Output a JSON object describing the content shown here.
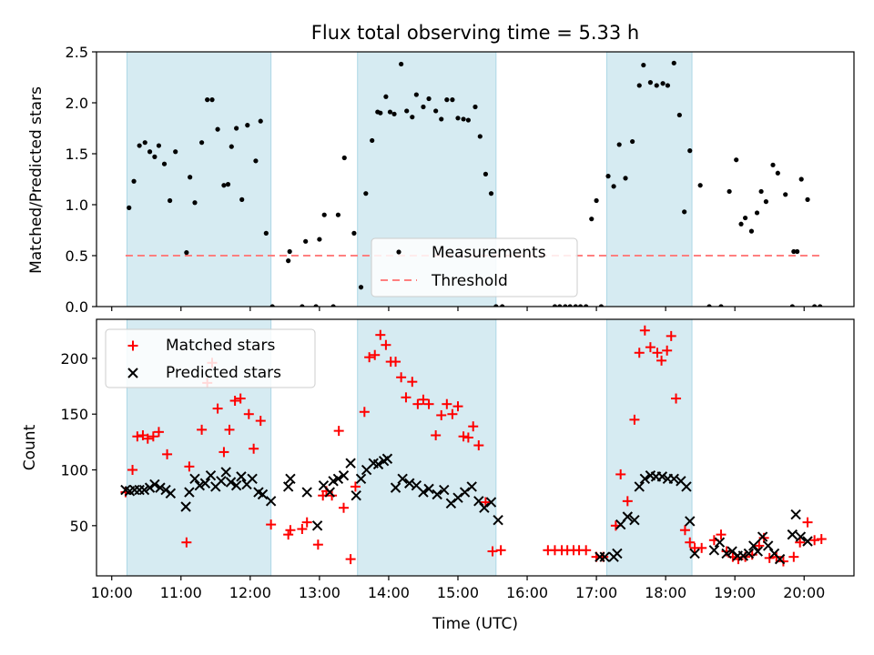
{
  "title": "Flux total observing time = 5.33 h",
  "colors": {
    "shade": "#add8e6",
    "measurement": "#000000",
    "threshold": "#ff7f7f",
    "matched": "#ff0000",
    "predicted": "#000000"
  },
  "chart_data": [
    {
      "type": "scatter",
      "ylabel": "Matched/Predicted stars",
      "ylim": [
        0,
        2.5
      ],
      "xlim": [
        9.78,
        20.72
      ],
      "yticks": [
        0.0,
        0.5,
        1.0,
        1.5,
        2.0,
        2.5
      ],
      "ytick_labels": [
        "0.0",
        "0.5",
        "1.0",
        "1.5",
        "2.0",
        "2.5"
      ],
      "legend": {
        "position": "lower-center",
        "entries": [
          "Measurements",
          "Threshold"
        ]
      },
      "threshold": {
        "name": "Threshold",
        "value": 0.5,
        "x_range": [
          10.2,
          20.25
        ]
      },
      "shaded_intervals": [
        [
          10.22,
          12.3
        ],
        [
          13.55,
          15.55
        ],
        [
          17.15,
          18.38
        ]
      ],
      "series": [
        {
          "name": "Measurements",
          "marker": "dot",
          "x": [
            10.25,
            10.32,
            10.4,
            10.48,
            10.55,
            10.62,
            10.68,
            10.76,
            10.84,
            10.92,
            11.08,
            11.13,
            11.2,
            11.3,
            11.38,
            11.45,
            11.53,
            11.62,
            11.68,
            11.73,
            11.8,
            11.88,
            11.96,
            12.08,
            12.15,
            12.23,
            12.32,
            12.55,
            12.57,
            12.75,
            12.8,
            12.95,
            13.0,
            13.07,
            13.2,
            13.27,
            13.36,
            13.5,
            13.6,
            13.67,
            13.76,
            13.84,
            13.88,
            13.96,
            14.02,
            14.08,
            14.18,
            14.26,
            14.34,
            14.4,
            14.5,
            14.58,
            14.68,
            14.76,
            14.84,
            14.92,
            15.0,
            15.08,
            15.15,
            15.25,
            15.32,
            15.4,
            15.48,
            15.55,
            15.64,
            16.4,
            16.47,
            16.55,
            16.62,
            16.7,
            16.77,
            16.85,
            16.93,
            17.0,
            17.07,
            17.17,
            17.25,
            17.33,
            17.42,
            17.52,
            17.62,
            17.68,
            17.78,
            17.87,
            17.96,
            18.03,
            18.12,
            18.2,
            18.27,
            18.35,
            18.5,
            18.63,
            18.8,
            18.92,
            19.02,
            19.09,
            19.15,
            19.24,
            19.32,
            19.38,
            19.45,
            19.55,
            19.62,
            19.73,
            19.83,
            19.85,
            19.9,
            19.96,
            20.05,
            20.15,
            20.23
          ],
          "y": [
            0.97,
            1.23,
            1.58,
            1.61,
            1.52,
            1.47,
            1.58,
            1.4,
            1.04,
            1.52,
            0.53,
            1.27,
            1.02,
            1.61,
            2.03,
            2.03,
            1.74,
            1.19,
            1.2,
            1.57,
            1.75,
            1.05,
            1.78,
            1.43,
            1.82,
            0.72,
            0.0,
            0.45,
            0.54,
            0.0,
            0.64,
            0.0,
            0.66,
            0.9,
            0.0,
            0.9,
            1.46,
            0.72,
            0.19,
            1.11,
            1.63,
            1.91,
            1.9,
            2.06,
            1.91,
            1.89,
            2.38,
            1.92,
            1.86,
            2.08,
            1.96,
            2.04,
            1.92,
            1.84,
            2.03,
            2.03,
            1.85,
            1.84,
            1.83,
            1.96,
            1.67,
            1.3,
            1.11,
            0.0,
            0.0,
            0.0,
            0.0,
            0.0,
            0.0,
            0.0,
            0.0,
            0.0,
            0.86,
            1.04,
            0.0,
            1.28,
            1.18,
            1.59,
            1.26,
            1.62,
            2.17,
            2.37,
            2.2,
            2.17,
            2.19,
            2.17,
            2.39,
            1.88,
            0.93,
            1.53,
            1.19,
            0.0,
            0.0,
            1.13,
            1.44,
            0.81,
            0.87,
            0.74,
            0.92,
            1.13,
            1.03,
            1.39,
            1.31,
            1.1,
            0.0,
            0.54,
            0.54,
            1.25,
            1.05,
            0.0,
            0.0
          ]
        }
      ]
    },
    {
      "type": "scatter",
      "xlabel": "Time (UTC)",
      "ylabel": "Count",
      "ylim": [
        5,
        235
      ],
      "xlim": [
        9.78,
        20.72
      ],
      "yticks": [
        50,
        100,
        150,
        200
      ],
      "ytick_labels": [
        "50",
        "100",
        "150",
        "200"
      ],
      "xticks": [
        10,
        11,
        12,
        13,
        14,
        15,
        16,
        17,
        18,
        19,
        20
      ],
      "xtick_labels": [
        "10:00",
        "11:00",
        "12:00",
        "13:00",
        "14:00",
        "15:00",
        "16:00",
        "17:00",
        "18:00",
        "19:00",
        "20:00"
      ],
      "legend": {
        "position": "top-left",
        "entries": [
          "Matched stars",
          "Predicted stars"
        ]
      },
      "shaded_intervals": [
        [
          10.22,
          12.3
        ],
        [
          13.55,
          15.55
        ],
        [
          17.15,
          18.38
        ]
      ],
      "series": [
        {
          "name": "Matched stars",
          "marker": "plus",
          "x": [
            10.2,
            10.3,
            10.37,
            10.45,
            10.52,
            10.6,
            10.68,
            10.8,
            11.08,
            11.12,
            11.3,
            11.38,
            11.45,
            11.53,
            11.62,
            11.7,
            11.78,
            11.86,
            11.98,
            12.05,
            12.15,
            12.3,
            12.55,
            12.58,
            12.75,
            12.82,
            12.98,
            13.05,
            13.1,
            13.18,
            13.28,
            13.35,
            13.45,
            13.52,
            13.65,
            13.72,
            13.8,
            13.88,
            13.96,
            14.03,
            14.1,
            14.18,
            14.25,
            14.34,
            14.42,
            14.5,
            14.58,
            14.68,
            14.76,
            14.84,
            14.92,
            15.0,
            15.08,
            15.15,
            15.22,
            15.3,
            15.4,
            15.5,
            15.62,
            16.3,
            16.4,
            16.5,
            16.58,
            16.67,
            16.75,
            16.85,
            17.0,
            17.1,
            17.28,
            17.35,
            17.45,
            17.55,
            17.62,
            17.7,
            17.78,
            17.88,
            17.94,
            18.02,
            18.08,
            18.15,
            18.28,
            18.35,
            18.42,
            18.52,
            18.7,
            18.8,
            18.88,
            18.97,
            19.05,
            19.15,
            19.25,
            19.35,
            19.42,
            19.5,
            19.6,
            19.7,
            19.85,
            19.94,
            20.05,
            20.15,
            20.25
          ],
          "y": [
            80,
            100,
            130,
            131,
            128,
            130,
            134,
            114,
            35,
            103,
            136,
            178,
            196,
            155,
            116,
            136,
            162,
            164,
            150,
            119,
            144,
            51,
            42,
            46,
            47,
            53,
            33,
            77,
            81,
            77,
            135,
            66,
            20,
            85,
            152,
            201,
            203,
            221,
            212,
            197,
            197,
            183,
            165,
            179,
            159,
            163,
            159,
            131,
            149,
            159,
            150,
            157,
            130,
            129,
            139,
            122,
            71,
            27,
            28,
            28,
            28,
            28,
            28,
            28,
            28,
            28,
            22,
            22,
            50,
            96,
            72,
            145,
            205,
            225,
            210,
            205,
            198,
            207,
            220,
            164,
            46,
            35,
            30,
            30,
            37,
            42,
            27,
            22,
            20,
            22,
            24,
            32,
            39,
            21,
            22,
            18,
            22,
            35,
            53,
            37,
            38
          ]
        },
        {
          "name": "Predicted stars",
          "marker": "x",
          "x": [
            10.2,
            10.26,
            10.33,
            10.4,
            10.47,
            10.55,
            10.62,
            10.7,
            10.78,
            10.85,
            11.07,
            11.12,
            11.2,
            11.27,
            11.35,
            11.43,
            11.5,
            11.58,
            11.65,
            11.72,
            11.8,
            11.87,
            11.95,
            12.03,
            12.12,
            12.18,
            12.3,
            12.55,
            12.58,
            12.82,
            12.97,
            13.06,
            13.15,
            13.2,
            13.27,
            13.35,
            13.45,
            13.53,
            13.6,
            13.68,
            13.78,
            13.85,
            13.93,
            13.98,
            14.1,
            14.2,
            14.3,
            14.4,
            14.5,
            14.58,
            14.7,
            14.8,
            14.9,
            15.0,
            15.1,
            15.2,
            15.3,
            15.38,
            15.48,
            15.58,
            17.05,
            17.12,
            17.25,
            17.3,
            17.35,
            17.45,
            17.55,
            17.62,
            17.7,
            17.78,
            17.86,
            17.95,
            18.03,
            18.12,
            18.22,
            18.3,
            18.35,
            18.42,
            18.7,
            18.78,
            18.88,
            18.96,
            19.04,
            19.12,
            19.2,
            19.27,
            19.33,
            19.4,
            19.48,
            19.57,
            19.65,
            19.83,
            19.88,
            19.95,
            20.05
          ],
          "y": [
            82,
            81,
            82,
            82,
            82,
            84,
            87,
            84,
            82,
            79,
            67,
            80,
            92,
            86,
            88,
            95,
            85,
            90,
            98,
            89,
            86,
            94,
            87,
            92,
            80,
            78,
            72,
            85,
            92,
            80,
            50,
            86,
            80,
            90,
            92,
            95,
            106,
            77,
            92,
            100,
            106,
            105,
            108,
            110,
            84,
            92,
            88,
            86,
            80,
            83,
            78,
            82,
            70,
            75,
            80,
            85,
            72,
            66,
            71,
            55,
            22,
            22,
            22,
            25,
            51,
            58,
            55,
            85,
            92,
            95,
            94,
            94,
            92,
            92,
            90,
            85,
            54,
            25,
            28,
            35,
            25,
            27,
            23,
            23,
            25,
            32,
            27,
            40,
            32,
            25,
            20,
            42,
            60,
            40,
            36
          ]
        }
      ]
    }
  ]
}
